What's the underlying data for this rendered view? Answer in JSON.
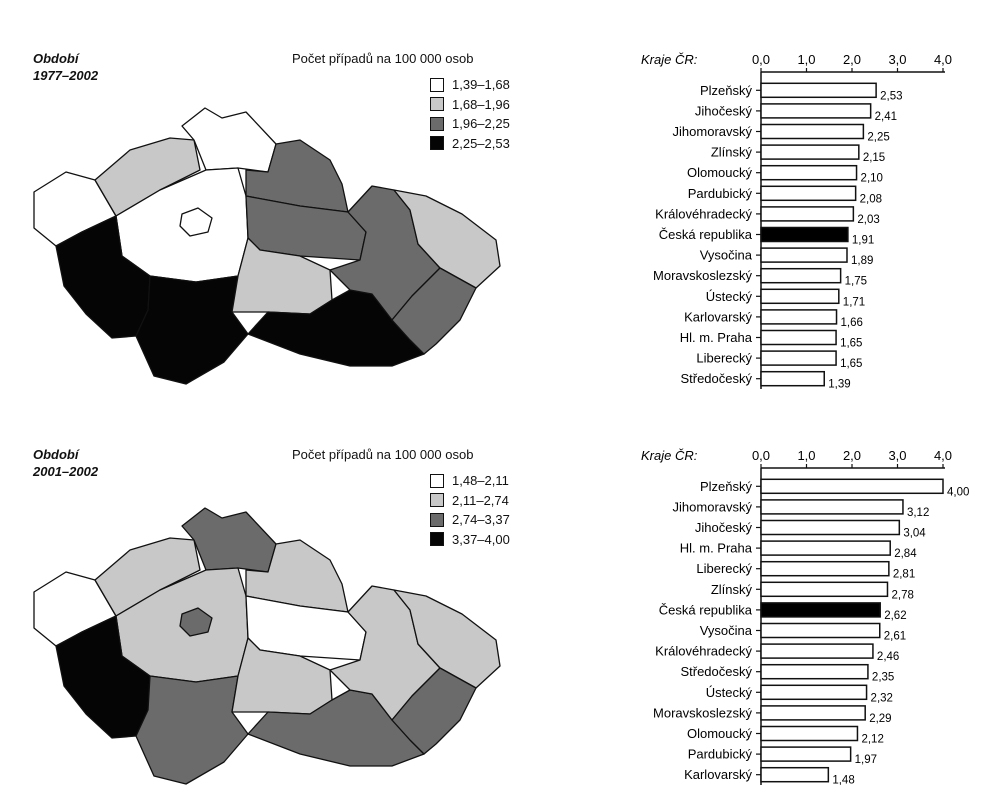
{
  "maps": [
    {
      "period_label": "Období",
      "period_years": "1977–2002",
      "legend_title": "Počet případů na 100 000 osob",
      "legend": [
        {
          "label": "1,39–1,68",
          "color": "#ffffff"
        },
        {
          "label": "1,68–1,96",
          "color": "#c8c8c8"
        },
        {
          "label": "1,96–2,25",
          "color": "#6b6b6b"
        },
        {
          "label": "2,25–2,53",
          "color": "#050505"
        }
      ]
    },
    {
      "period_label": "Období",
      "period_years": "2001–2002",
      "legend_title": "Počet případů na 100 000 osob",
      "legend": [
        {
          "label": "1,48–2,11",
          "color": "#ffffff"
        },
        {
          "label": "2,11–2,74",
          "color": "#c8c8c8"
        },
        {
          "label": "2,74–3,37",
          "color": "#6b6b6b"
        },
        {
          "label": "3,37–4,00",
          "color": "#050505"
        }
      ]
    }
  ],
  "chart_data": [
    {
      "type": "bar",
      "orientation": "horizontal",
      "axis_title": "Kraje ČR:",
      "ticks": [
        "0,0",
        "1,0",
        "2,0",
        "3,0",
        "4,0"
      ],
      "xlim": [
        0,
        4
      ],
      "categories": [
        "Plzeňský",
        "Jihočeský",
        "Jihomoravský",
        "Zlínský",
        "Olomoucký",
        "Pardubický",
        "Královéhradecký",
        "Česká republika",
        "Vysočina",
        "Moravskoslezský",
        "Ústecký",
        "Karlovarský",
        "Hl. m. Praha",
        "Liberecký",
        "Středočeský"
      ],
      "values": [
        2.53,
        2.41,
        2.25,
        2.15,
        2.1,
        2.08,
        2.03,
        1.91,
        1.89,
        1.75,
        1.71,
        1.66,
        1.65,
        1.65,
        1.39
      ],
      "value_labels": [
        "2,53",
        "2,41",
        "2,25",
        "2,15",
        "2,10",
        "2,08",
        "2,03",
        "1,91",
        "1,89",
        "1,75",
        "1,71",
        "1,66",
        "1,65",
        "1,65",
        "1,39"
      ],
      "highlight": "Česká republika",
      "bar_color": "#ffffff",
      "highlight_color": "#000000"
    },
    {
      "type": "bar",
      "orientation": "horizontal",
      "axis_title": "Kraje ČR:",
      "ticks": [
        "0,0",
        "1,0",
        "2,0",
        "3,0",
        "4,0"
      ],
      "xlim": [
        0,
        4
      ],
      "categories": [
        "Plzeňský",
        "Jihomoravský",
        "Jihočeský",
        "Hl. m. Praha",
        "Liberecký",
        "Zlínský",
        "Česká republika",
        "Vysočina",
        "Královéhradecký",
        "Středočeský",
        "Ústecký",
        "Moravskoslezský",
        "Olomoucký",
        "Pardubický",
        "Karlovarský"
      ],
      "values": [
        4.0,
        3.12,
        3.04,
        2.84,
        2.81,
        2.78,
        2.62,
        2.61,
        2.46,
        2.35,
        2.32,
        2.29,
        2.12,
        1.97,
        1.48
      ],
      "value_labels": [
        "4,00",
        "3,12",
        "3,04",
        "2,84",
        "2,81",
        "2,78",
        "2,62",
        "2,61",
        "2,46",
        "2,35",
        "2,32",
        "2,29",
        "2,12",
        "1,97",
        "1,48"
      ],
      "highlight": "Česká republika",
      "bar_color": "#ffffff",
      "highlight_color": "#000000"
    }
  ]
}
